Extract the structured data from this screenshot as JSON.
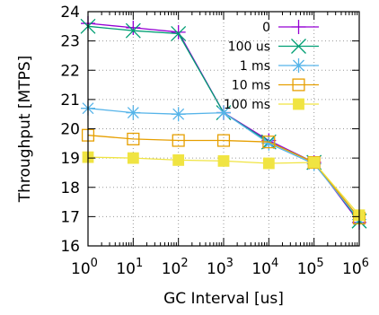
{
  "chart_data": {
    "type": "line",
    "xlabel": "GC Interval [us]",
    "ylabel": "Throughput [MTPS]",
    "xscale": "log10",
    "xlim": [
      1,
      1000000
    ],
    "ylim": [
      16,
      24
    ],
    "x_ticks": [
      {
        "value": 1,
        "base": "10",
        "exp": "0"
      },
      {
        "value": 10,
        "base": "10",
        "exp": "1"
      },
      {
        "value": 100,
        "base": "10",
        "exp": "2"
      },
      {
        "value": 1000,
        "base": "10",
        "exp": "3"
      },
      {
        "value": 10000,
        "base": "10",
        "exp": "4"
      },
      {
        "value": 100000,
        "base": "10",
        "exp": "5"
      },
      {
        "value": 1000000,
        "base": "10",
        "exp": "6"
      }
    ],
    "y_ticks": [
      {
        "value": 16,
        "label": "16"
      },
      {
        "value": 17,
        "label": "17"
      },
      {
        "value": 18,
        "label": "18"
      },
      {
        "value": 19,
        "label": "19"
      },
      {
        "value": 20,
        "label": "20"
      },
      {
        "value": 21,
        "label": "21"
      },
      {
        "value": 22,
        "label": "22"
      },
      {
        "value": 23,
        "label": "23"
      },
      {
        "value": 24,
        "label": "24"
      }
    ],
    "grid": true,
    "legend_position": "top-right",
    "x": [
      1,
      10,
      100,
      1000,
      10000,
      100000,
      1000000
    ],
    "series": [
      {
        "name": "0",
        "color": "#9400d3",
        "marker": "plus",
        "values": [
          23.6,
          23.45,
          23.3,
          20.55,
          19.6,
          18.85,
          16.8
        ]
      },
      {
        "name": "100 us",
        "color": "#009e73",
        "marker": "cross",
        "values": [
          23.5,
          23.35,
          23.25,
          20.55,
          19.55,
          18.85,
          16.85
        ]
      },
      {
        "name": "1 ms",
        "color": "#56b4e9",
        "marker": "star",
        "values": [
          20.7,
          20.55,
          20.5,
          20.55,
          19.5,
          18.8,
          16.9
        ]
      },
      {
        "name": "10 ms",
        "color": "#e69f00",
        "marker": "open-square",
        "values": [
          19.78,
          19.65,
          19.6,
          19.6,
          19.55,
          18.85,
          16.95
        ]
      },
      {
        "name": "100 ms",
        "color": "#f0e442",
        "marker": "filled-square",
        "values": [
          19.03,
          19.0,
          18.93,
          18.9,
          18.82,
          18.85,
          17.05
        ]
      }
    ]
  }
}
